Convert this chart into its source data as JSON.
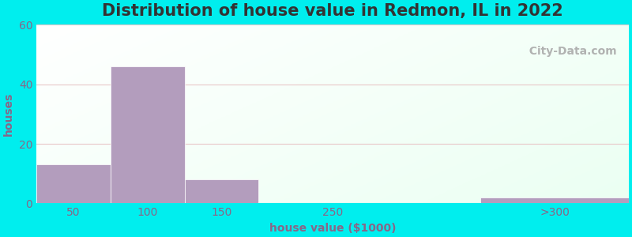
{
  "title": "Distribution of house value in Redmon, IL in 2022",
  "xlabel": "house value ($1000)",
  "ylabel": "houses",
  "bar_lefts": [
    0,
    1,
    2,
    3,
    4,
    6
  ],
  "bar_widths": [
    1,
    1,
    1,
    1,
    2,
    2
  ],
  "bar_heights": [
    13,
    46,
    8,
    0,
    0,
    2
  ],
  "bar_color": "#b39dbd",
  "bar_edgecolor": "#c8b8d4",
  "xtick_positions": [
    0.5,
    1.5,
    2.5,
    4.0,
    7.0
  ],
  "xtick_labels": [
    "50",
    "100",
    "150",
    "250",
    ">300"
  ],
  "ytick_values": [
    0,
    20,
    40,
    60
  ],
  "xlim": [
    0,
    8
  ],
  "ylim": [
    0,
    60
  ],
  "bg_color": "#00eeee",
  "plot_bg_left_top": "#f5fff5",
  "plot_bg_right_bottom": "#e8fff8",
  "watermark": "  City-Data.com",
  "title_fontsize": 15,
  "axis_label_fontsize": 10,
  "tick_fontsize": 10,
  "grid_color": "#e8c8c8",
  "label_color": "#886688",
  "title_color": "#333333"
}
